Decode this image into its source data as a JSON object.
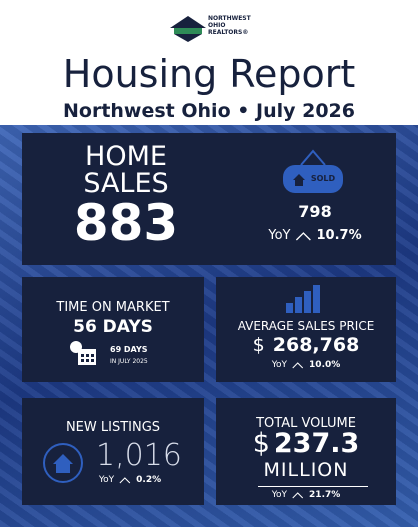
{
  "logo": {
    "lines": [
      "NORTHWEST",
      "OHIO",
      "REALTORS®"
    ]
  },
  "header": {
    "title": "Housing Report",
    "subtitle": "Northwest Ohio • July 2026"
  },
  "home_sales": {
    "label_1": "HOME",
    "label_2": "SALES",
    "value": "883",
    "sign": "SOLD",
    "previous": "798",
    "yoy_label": "YoY",
    "yoy": "10.7%"
  },
  "time_on_market": {
    "label": "TIME ON MARKET",
    "value": "56 DAYS",
    "previous": "69 DAYS",
    "previous_note": "IN JULY 2025"
  },
  "average_price": {
    "label": "AVERAGE SALES PRICE",
    "currency": "$",
    "value": "268,768",
    "yoy_label": "YoY",
    "yoy": "10.0%"
  },
  "new_listings": {
    "label": "NEW LISTINGS",
    "value": "1,016",
    "yoy_label": "YoY",
    "yoy": "0.2%"
  },
  "total_volume": {
    "label": "TOTAL VOLUME",
    "currency": "$",
    "value": "237.3",
    "unit": "MILLION",
    "yoy_label": "YoY",
    "yoy": "21.7%"
  }
}
